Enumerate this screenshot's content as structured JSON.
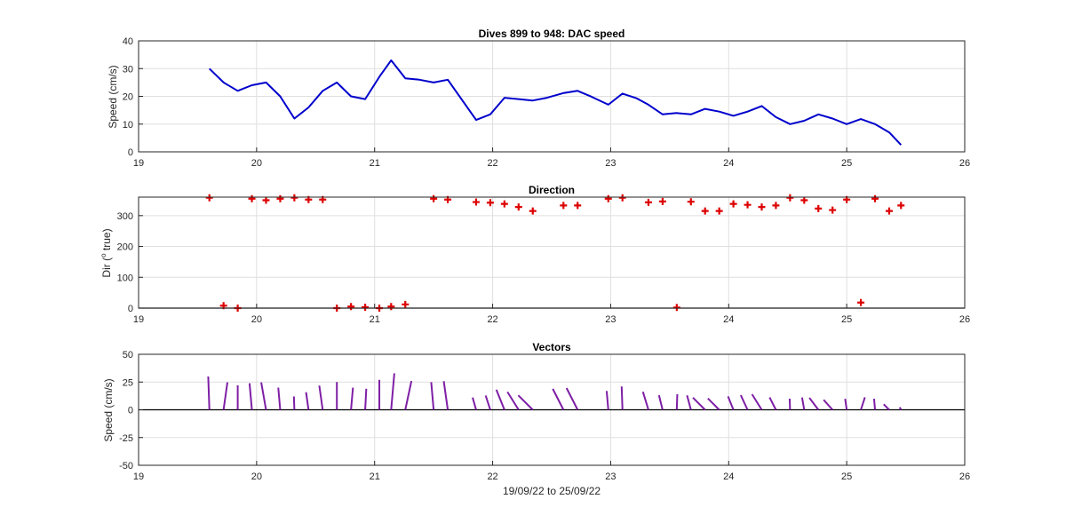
{
  "colors": {
    "speed_line": "#0000cc",
    "direction_marker": "#dd0000",
    "vector": "#7e1fa5",
    "zero_line": "#000000"
  },
  "chart_data": [
    {
      "type": "line",
      "title": "Dives 899 to 948: DAC speed",
      "xlabel": "",
      "ylabel": "Speed (cm/s)",
      "xlim": [
        19,
        26
      ],
      "ylim": [
        0,
        40
      ],
      "xticks": [
        "19",
        "20",
        "21",
        "22",
        "23",
        "24",
        "25",
        "26"
      ],
      "yticks": [
        "0",
        "10",
        "20",
        "30",
        "40"
      ],
      "grid": true,
      "series": [
        {
          "x": [
            19.6,
            19.72,
            19.84,
            19.96,
            20.08,
            20.2,
            20.32,
            20.44,
            20.56,
            20.68,
            20.8,
            20.92,
            21.04,
            21.14,
            21.26,
            21.38,
            21.5,
            21.62,
            21.86,
            21.98,
            22.1,
            22.22,
            22.34,
            22.46,
            22.6,
            22.72,
            22.84,
            22.98,
            23.1,
            23.22,
            23.32,
            23.44,
            23.56,
            23.68,
            23.8,
            23.92,
            24.04,
            24.16,
            24.28,
            24.4,
            24.52,
            24.64,
            24.76,
            24.88,
            25.0,
            25.12,
            25.24,
            25.36,
            25.46
          ],
          "y": [
            30,
            25,
            22,
            24,
            25,
            20,
            12,
            16,
            22,
            25,
            20,
            19,
            27,
            33,
            26.5,
            26,
            25,
            26,
            11.5,
            13.5,
            19.5,
            19,
            18.5,
            19.5,
            21.2,
            22,
            19.8,
            17,
            21,
            19.3,
            17,
            13.5,
            14,
            13.5,
            15.5,
            14.5,
            13,
            14.5,
            16.5,
            12.5,
            10,
            11.2,
            13.5,
            12,
            10,
            11.8,
            10,
            7,
            2.5
          ]
        }
      ]
    },
    {
      "type": "scatter",
      "title": "Direction",
      "xlabel": "",
      "ylabel": "Dir (° true)",
      "ylabel_main": "Dir (",
      "ylabel_sup": "o",
      "ylabel_tail": " true)",
      "xlim": [
        19,
        26
      ],
      "ylim": [
        0,
        360
      ],
      "xticks": [
        "19",
        "20",
        "21",
        "22",
        "23",
        "24",
        "25",
        "26"
      ],
      "yticks": [
        "0",
        "100",
        "200",
        "300"
      ],
      "grid": true,
      "marker": "+",
      "series": [
        {
          "x": [
            19.6,
            19.72,
            19.84,
            19.96,
            20.08,
            20.2,
            20.32,
            20.44,
            20.56,
            20.68,
            20.8,
            20.92,
            21.04,
            21.14,
            21.26,
            21.5,
            21.62,
            21.86,
            21.98,
            22.1,
            22.22,
            22.34,
            22.6,
            22.72,
            22.98,
            23.1,
            23.32,
            23.44,
            23.56,
            23.68,
            23.8,
            23.92,
            24.04,
            24.16,
            24.28,
            24.4,
            24.52,
            24.64,
            24.76,
            24.88,
            25.0,
            25.12,
            25.24,
            25.36,
            25.46
          ],
          "y": [
            358,
            8,
            0,
            355,
            350,
            355,
            358,
            352,
            352,
            0,
            5,
            3,
            0,
            5,
            12,
            355,
            352,
            344,
            342,
            338,
            328,
            315,
            333,
            333,
            355,
            358,
            343,
            346,
            2,
            345,
            315,
            315,
            338,
            335,
            328,
            333,
            358,
            350,
            323,
            318,
            352,
            18,
            355,
            315,
            333
          ]
        }
      ]
    },
    {
      "type": "vector",
      "title": "Vectors",
      "xlabel": "19/09/22 to 25/09/22",
      "ylabel": "Speed (cm/s)",
      "xlim": [
        19,
        26
      ],
      "ylim": [
        -50,
        50
      ],
      "xticks": [
        "19",
        "20",
        "21",
        "22",
        "23",
        "24",
        "25",
        "26"
      ],
      "yticks": [
        "-50",
        "-25",
        "0",
        "25",
        "50"
      ],
      "grid": true
    }
  ]
}
